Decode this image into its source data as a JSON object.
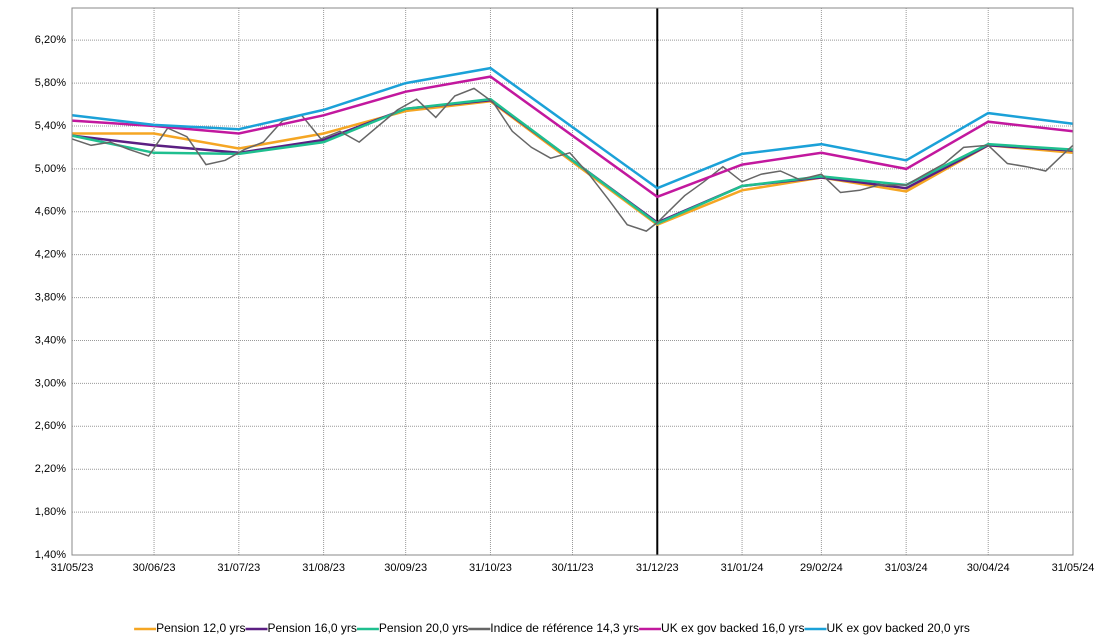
{
  "chart_data": {
    "type": "line",
    "xlim": [
      "31/05/23",
      "31/05/24"
    ],
    "xticks": [
      "31/05/23",
      "30/06/23",
      "31/07/23",
      "31/08/23",
      "30/09/23",
      "31/10/23",
      "30/11/23",
      "31/12/23",
      "31/01/24",
      "29/02/24",
      "31/03/24",
      "30/04/24",
      "31/05/24"
    ],
    "ylim": [
      1.4,
      6.5
    ],
    "yticks": [
      {
        "value": 1.4,
        "label": "1,40%"
      },
      {
        "value": 1.8,
        "label": "1,80%"
      },
      {
        "value": 2.2,
        "label": "2,20%"
      },
      {
        "value": 2.6,
        "label": "2,60%"
      },
      {
        "value": 3.0,
        "label": "3,00%"
      },
      {
        "value": 3.4,
        "label": "3,40%"
      },
      {
        "value": 3.8,
        "label": "3,80%"
      },
      {
        "value": 4.2,
        "label": "4,20%"
      },
      {
        "value": 4.6,
        "label": "4,60%"
      },
      {
        "value": 5.0,
        "label": "5,00%"
      },
      {
        "value": 5.4,
        "label": "5,40%"
      },
      {
        "value": 5.8,
        "label": "5,80%"
      },
      {
        "value": 6.2,
        "label": "6,20%"
      }
    ],
    "grid": true,
    "vline": "31/12/23",
    "legend": "bottom",
    "series": [
      {
        "name": "Pension 12,0 yrs",
        "color": "#f5a623",
        "x": [
          "31/05/23",
          "30/06/23",
          "31/07/23",
          "31/08/23",
          "30/09/23",
          "31/10/23",
          "31/12/23",
          "31/01/24",
          "29/02/24",
          "31/03/24",
          "30/04/24",
          "31/05/24"
        ],
        "values": [
          5.33,
          5.33,
          5.19,
          5.33,
          5.54,
          5.63,
          4.48,
          4.8,
          4.92,
          4.79,
          5.22,
          5.15
        ]
      },
      {
        "name": "Pension 16,0 yrs",
        "color": "#5b1f82",
        "x": [
          "31/05/23",
          "30/06/23",
          "31/07/23",
          "31/08/23",
          "30/09/23",
          "31/10/23",
          "31/12/23",
          "31/01/24",
          "29/02/24",
          "31/03/24",
          "30/04/24",
          "31/05/24"
        ],
        "values": [
          5.31,
          5.22,
          5.15,
          5.27,
          5.56,
          5.64,
          4.5,
          4.84,
          4.92,
          4.82,
          5.22,
          5.17
        ]
      },
      {
        "name": "Pension 20,0 yrs",
        "color": "#1fbf8f",
        "x": [
          "31/05/23",
          "30/06/23",
          "31/07/23",
          "31/08/23",
          "30/09/23",
          "31/10/23",
          "31/12/23",
          "31/01/24",
          "29/02/24",
          "31/03/24",
          "30/04/24",
          "31/05/24"
        ],
        "values": [
          5.31,
          5.15,
          5.14,
          5.25,
          5.56,
          5.65,
          4.49,
          4.84,
          4.93,
          4.85,
          5.23,
          5.18
        ]
      },
      {
        "name": "Indice de référence 14,3 yrs",
        "color": "#666666",
        "x": [
          "31/05/23",
          "07/06/23",
          "14/06/23",
          "21/06/23",
          "28/06/23",
          "05/07/23",
          "12/07/23",
          "19/07/23",
          "26/07/23",
          "02/08/23",
          "09/08/23",
          "16/08/23",
          "23/08/23",
          "30/08/23",
          "06/09/23",
          "13/09/23",
          "20/09/23",
          "27/09/23",
          "04/10/23",
          "11/10/23",
          "18/10/23",
          "25/10/23",
          "01/11/23",
          "08/11/23",
          "15/11/23",
          "22/11/23",
          "29/11/23",
          "06/12/23",
          "13/12/23",
          "20/12/23",
          "27/12/23",
          "31/12/23",
          "10/01/24",
          "17/01/24",
          "24/01/24",
          "31/01/24",
          "07/02/24",
          "14/02/24",
          "21/02/24",
          "29/02/24",
          "07/03/24",
          "14/03/24",
          "21/03/24",
          "31/03/24",
          "07/04/24",
          "14/04/24",
          "21/04/24",
          "30/04/24",
          "07/05/24",
          "14/05/24",
          "21/05/24",
          "28/05/24",
          "31/05/24"
        ],
        "values": [
          5.28,
          5.22,
          5.25,
          5.18,
          5.12,
          5.38,
          5.3,
          5.04,
          5.08,
          5.18,
          5.25,
          5.45,
          5.5,
          5.28,
          5.35,
          5.25,
          5.4,
          5.55,
          5.65,
          5.48,
          5.68,
          5.75,
          5.62,
          5.35,
          5.2,
          5.1,
          5.15,
          4.95,
          4.72,
          4.48,
          4.42,
          4.5,
          4.75,
          4.88,
          5.02,
          4.88,
          4.95,
          4.98,
          4.9,
          4.95,
          4.78,
          4.8,
          4.85,
          4.85,
          4.95,
          5.05,
          5.2,
          5.22,
          5.05,
          5.02,
          4.98,
          5.15,
          5.22
        ]
      },
      {
        "name": "UK ex gov backed 16,0 yrs",
        "color": "#c2189e",
        "x": [
          "31/05/23",
          "30/06/23",
          "31/07/23",
          "31/08/23",
          "30/09/23",
          "31/10/23",
          "31/12/23",
          "31/01/24",
          "29/02/24",
          "31/03/24",
          "30/04/24",
          "31/05/24"
        ],
        "values": [
          5.45,
          5.4,
          5.33,
          5.5,
          5.72,
          5.86,
          4.74,
          5.04,
          5.15,
          5.0,
          5.44,
          5.35
        ]
      },
      {
        "name": "UK ex gov backed 20,0 yrs",
        "color": "#1ba1d8",
        "x": [
          "31/05/23",
          "30/06/23",
          "31/07/23",
          "31/08/23",
          "30/09/23",
          "31/10/23",
          "31/12/23",
          "31/01/24",
          "29/02/24",
          "31/03/24",
          "30/04/24",
          "31/05/24"
        ],
        "values": [
          5.5,
          5.41,
          5.37,
          5.55,
          5.8,
          5.94,
          4.82,
          5.14,
          5.23,
          5.08,
          5.52,
          5.42
        ]
      }
    ]
  }
}
